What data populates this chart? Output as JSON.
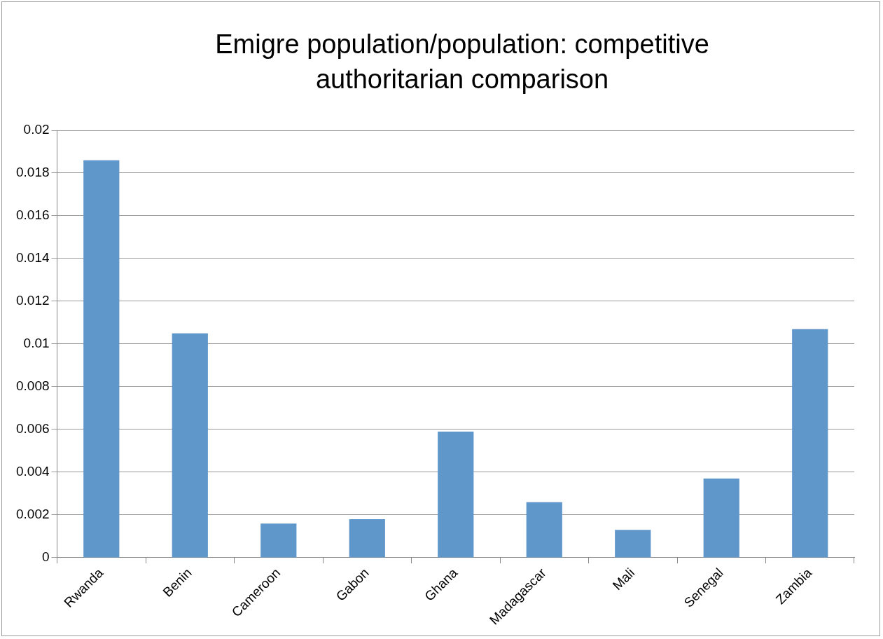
{
  "chart_data": {
    "type": "bar",
    "title": "Emigre population/population: competitive authoritarian comparison",
    "categories": [
      "Rwanda",
      "Benin",
      "Cameroon",
      "Gabon",
      "Ghana",
      "Madagascar",
      "Mali",
      "Senegal",
      "Zambia"
    ],
    "values": [
      0.0186,
      0.0105,
      0.0016,
      0.0018,
      0.0059,
      0.0026,
      0.0013,
      0.0037,
      0.0107
    ],
    "color": "#6097cb",
    "ylim": [
      0,
      0.02
    ],
    "yticks": [
      0,
      0.002,
      0.004,
      0.006,
      0.008,
      0.01,
      0.012,
      0.014,
      0.016,
      0.018,
      0.02
    ],
    "grid": "y",
    "legend": false
  }
}
